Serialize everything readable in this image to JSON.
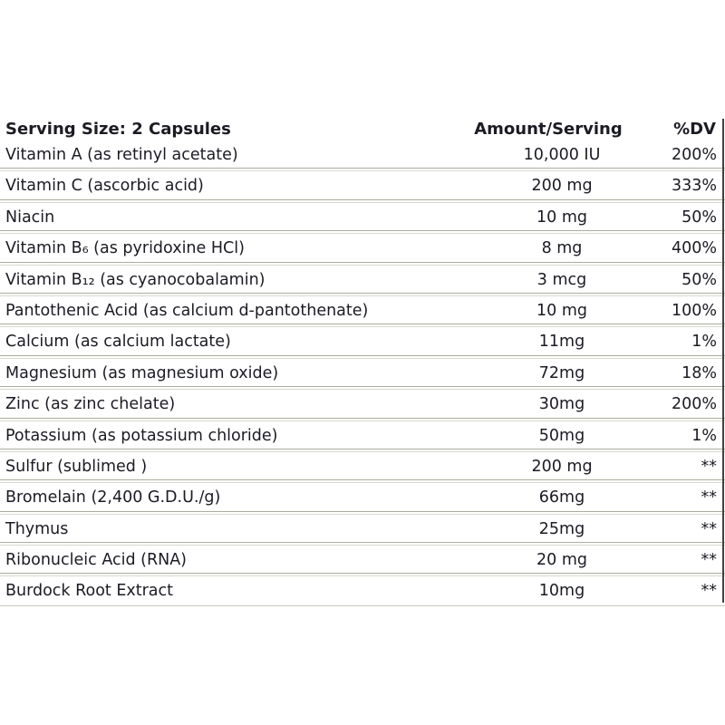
{
  "table": {
    "header": {
      "serving_size": "Serving Size: 2 Capsules",
      "amount": "Amount/Serving",
      "dv": "%DV"
    },
    "rows": [
      {
        "name": "Vitamin A (as retinyl acetate)",
        "amount": "10,000 IU",
        "dv": "200%"
      },
      {
        "name": "Vitamin C (ascorbic acid)",
        "amount": "200 mg",
        "dv": "333%"
      },
      {
        "name": "Niacin",
        "amount": "10 mg",
        "dv": "50%"
      },
      {
        "name": "Vitamin B₆ (as pyridoxine HCl)",
        "amount": "8 mg",
        "dv": "400%"
      },
      {
        "name": "Vitamin B₁₂ (as cyanocobalamin)",
        "amount": "3 mcg",
        "dv": "50%"
      },
      {
        "name": "Pantothenic Acid (as calcium d-pantothenate)",
        "amount": "10 mg",
        "dv": "100%"
      },
      {
        "name": "Calcium (as calcium lactate)",
        "amount": "11mg",
        "dv": "1%"
      },
      {
        "name": "Magnesium (as magnesium oxide)",
        "amount": "72mg",
        "dv": "18%"
      },
      {
        "name": "Zinc (as zinc chelate)",
        "amount": "30mg",
        "dv": "200%"
      },
      {
        "name": "Potassium (as potassium chloride)",
        "amount": "50mg",
        "dv": "1%"
      },
      {
        "name": "Sulfur (sublimed )",
        "amount": "200 mg",
        "dv": "**"
      },
      {
        "name": "Bromelain (2,400 G.D.U./g)",
        "amount": "66mg",
        "dv": "**"
      },
      {
        "name": "Thymus",
        "amount": "25mg",
        "dv": "**"
      },
      {
        "name": "Ribonucleic Acid (RNA)",
        "amount": "20 mg",
        "dv": "**"
      },
      {
        "name": "Burdock Root Extract",
        "amount": "10mg",
        "dv": "**"
      }
    ]
  },
  "colors": {
    "text": "#1b1b24",
    "rule_dark": "#a9ae9e",
    "rule_light": "#d7dacd",
    "rule_last": "#c7cabc",
    "border_right": "#424242"
  }
}
